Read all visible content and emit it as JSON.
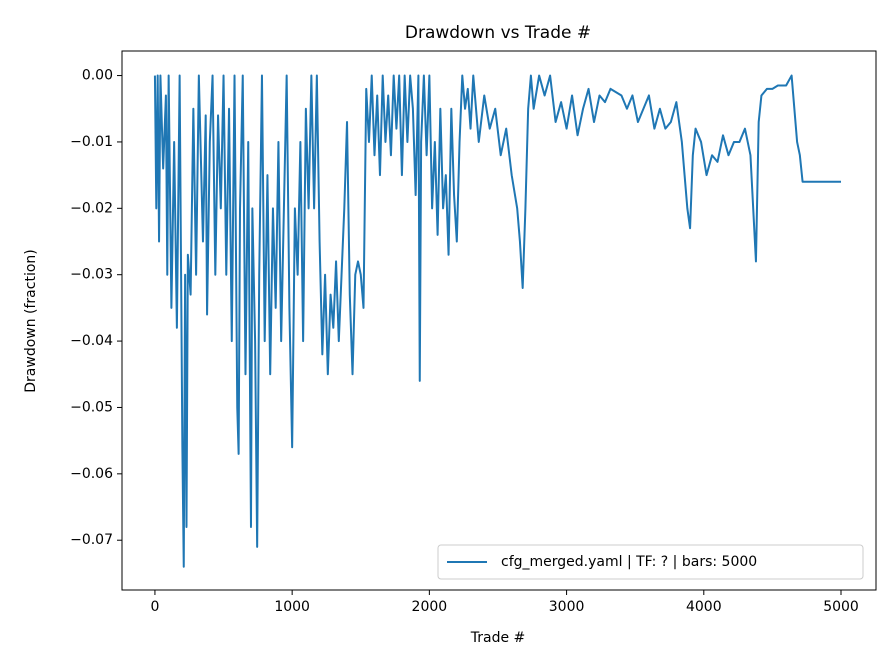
{
  "chart_data": {
    "type": "line",
    "title": "Drawdown vs Trade #",
    "xlabel": "Trade #",
    "ylabel": "Drawdown (fraction)",
    "xlim": [
      -240,
      5255
    ],
    "ylim": [
      -0.0775,
      0.0037
    ],
    "xticks": [
      0,
      1000,
      2000,
      3000,
      4000,
      5000
    ],
    "yticks": [
      {
        "value": 0,
        "label": "0.00"
      },
      {
        "value": -0.01,
        "label": "−0.01"
      },
      {
        "value": -0.02,
        "label": "−0.02"
      },
      {
        "value": -0.03,
        "label": "−0.03"
      },
      {
        "value": -0.04,
        "label": "−0.04"
      },
      {
        "value": -0.05,
        "label": "−0.05"
      },
      {
        "value": -0.06,
        "label": "−0.06"
      },
      {
        "value": -0.07,
        "label": "−0.07"
      }
    ],
    "grid": false,
    "legend": "lower right",
    "x": [
      0,
      10,
      20,
      30,
      40,
      60,
      80,
      90,
      100,
      120,
      140,
      160,
      180,
      200,
      210,
      220,
      230,
      240,
      260,
      280,
      300,
      320,
      350,
      370,
      380,
      400,
      420,
      440,
      460,
      480,
      500,
      520,
      540,
      560,
      580,
      600,
      610,
      620,
      640,
      660,
      680,
      700,
      710,
      730,
      745,
      760,
      780,
      800,
      820,
      840,
      860,
      880,
      900,
      920,
      940,
      960,
      980,
      1000,
      1020,
      1040,
      1060,
      1080,
      1100,
      1120,
      1140,
      1160,
      1180,
      1200,
      1220,
      1240,
      1260,
      1280,
      1300,
      1320,
      1340,
      1360,
      1380,
      1400,
      1420,
      1440,
      1460,
      1480,
      1500,
      1520,
      1540,
      1560,
      1580,
      1600,
      1620,
      1640,
      1660,
      1680,
      1700,
      1720,
      1740,
      1760,
      1780,
      1800,
      1820,
      1840,
      1860,
      1880,
      1900,
      1920,
      1930,
      1940,
      1960,
      1980,
      2000,
      2020,
      2040,
      2060,
      2080,
      2100,
      2120,
      2140,
      2160,
      2180,
      2200,
      2220,
      2240,
      2260,
      2280,
      2300,
      2320,
      2340,
      2360,
      2400,
      2440,
      2480,
      2520,
      2560,
      2600,
      2640,
      2660,
      2680,
      2700,
      2720,
      2740,
      2760,
      2800,
      2840,
      2880,
      2920,
      2960,
      3000,
      3040,
      3080,
      3120,
      3160,
      3200,
      3240,
      3280,
      3320,
      3400,
      3440,
      3480,
      3520,
      3560,
      3600,
      3640,
      3680,
      3720,
      3760,
      3800,
      3840,
      3860,
      3880,
      3900,
      3920,
      3940,
      3980,
      4020,
      4060,
      4100,
      4140,
      4180,
      4220,
      4260,
      4300,
      4340,
      4380,
      4400,
      4420,
      4460,
      4500,
      4540,
      4600,
      4640,
      4680,
      4700,
      4720,
      5000
    ],
    "series": [
      {
        "name": "cfg_merged.yaml | TF: ? | bars: 5000",
        "color": "#1f77b4",
        "values": [
          0,
          -0.02,
          0,
          -0.025,
          0,
          -0.014,
          -0.003,
          -0.03,
          0,
          -0.035,
          -0.01,
          -0.038,
          0,
          -0.056,
          -0.074,
          -0.03,
          -0.068,
          -0.027,
          -0.033,
          -0.005,
          -0.03,
          0,
          -0.025,
          -0.006,
          -0.036,
          -0.01,
          0,
          -0.03,
          -0.006,
          -0.02,
          0,
          -0.03,
          -0.005,
          -0.04,
          0,
          -0.05,
          -0.057,
          -0.02,
          0,
          -0.045,
          -0.01,
          -0.068,
          -0.02,
          -0.04,
          -0.071,
          -0.03,
          0,
          -0.04,
          -0.015,
          -0.045,
          -0.02,
          -0.035,
          -0.01,
          -0.04,
          -0.02,
          0,
          -0.035,
          -0.056,
          -0.02,
          -0.03,
          -0.01,
          -0.04,
          -0.005,
          -0.02,
          0,
          -0.02,
          0,
          -0.025,
          -0.042,
          -0.03,
          -0.045,
          -0.033,
          -0.038,
          -0.028,
          -0.04,
          -0.03,
          -0.02,
          -0.007,
          -0.033,
          -0.045,
          -0.03,
          -0.028,
          -0.03,
          -0.035,
          -0.002,
          -0.01,
          0,
          -0.012,
          -0.003,
          -0.015,
          0,
          -0.01,
          -0.003,
          -0.012,
          0,
          -0.008,
          0,
          -0.015,
          0,
          -0.01,
          0,
          -0.005,
          -0.018,
          0,
          -0.046,
          -0.01,
          0,
          -0.012,
          0,
          -0.02,
          -0.01,
          -0.024,
          -0.005,
          -0.02,
          -0.015,
          -0.027,
          -0.005,
          -0.018,
          -0.025,
          -0.01,
          0,
          -0.005,
          -0.002,
          -0.008,
          0,
          -0.005,
          -0.01,
          -0.003,
          -0.008,
          -0.005,
          -0.012,
          -0.008,
          -0.015,
          -0.02,
          -0.025,
          -0.032,
          -0.02,
          -0.005,
          0,
          -0.005,
          0,
          -0.003,
          0,
          -0.007,
          -0.004,
          -0.008,
          -0.003,
          -0.009,
          -0.005,
          -0.002,
          -0.007,
          -0.003,
          -0.004,
          -0.002,
          -0.003,
          -0.005,
          -0.003,
          -0.007,
          -0.005,
          -0.003,
          -0.008,
          -0.005,
          -0.008,
          -0.007,
          -0.004,
          -0.01,
          -0.015,
          -0.02,
          -0.023,
          -0.012,
          -0.008,
          -0.01,
          -0.015,
          -0.012,
          -0.013,
          -0.009,
          -0.012,
          -0.01,
          -0.01,
          -0.008,
          -0.012,
          -0.028,
          -0.007,
          -0.003,
          -0.002,
          -0.002,
          -0.0015,
          -0.0015,
          0,
          -0.01,
          -0.012,
          -0.016,
          -0.016
        ]
      }
    ]
  }
}
